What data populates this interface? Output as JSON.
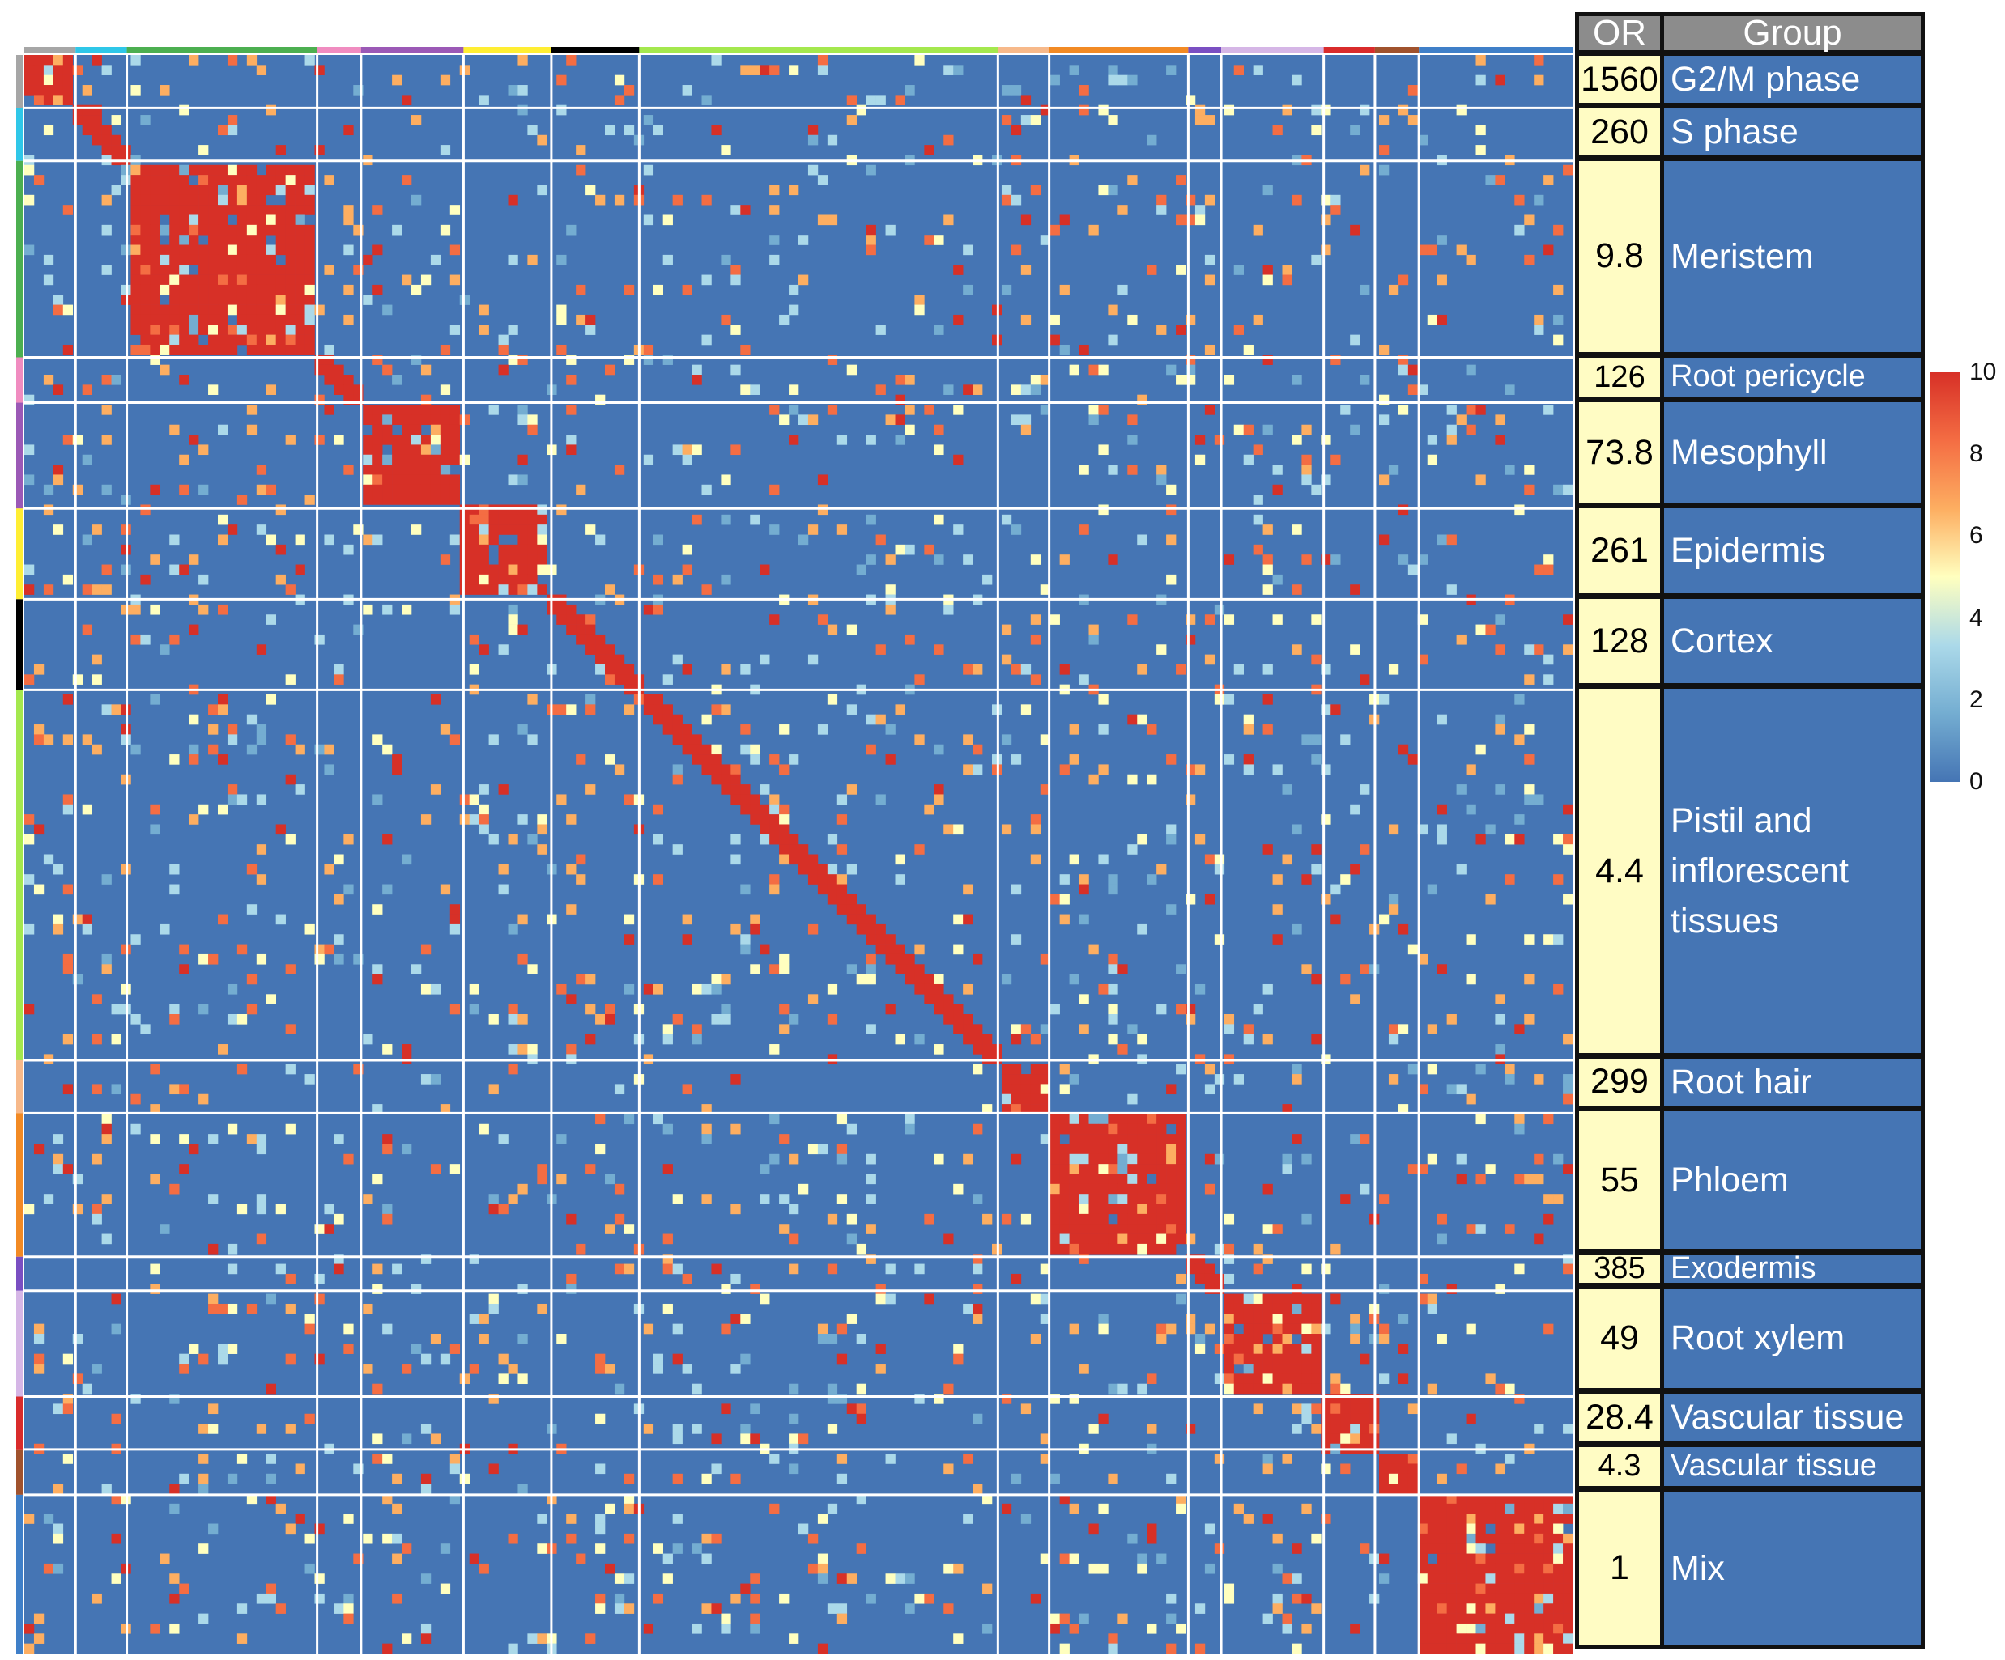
{
  "chart_data": {
    "type": "heatmap",
    "title": "",
    "xlabel": "",
    "ylabel": "",
    "table_headers": {
      "or": "OR",
      "group": "Group"
    },
    "groups": [
      {
        "name": "G2/M phase",
        "or": "1560",
        "color": "#a6a6a6"
      },
      {
        "name": "S phase",
        "or": "260",
        "color": "#2fc7e8"
      },
      {
        "name": "Meristem",
        "or": "9.8",
        "color": "#4caf50"
      },
      {
        "name": "Root pericycle",
        "or": "126",
        "color": "#f08cc0"
      },
      {
        "name": "Mesophyll",
        "or": "73.8",
        "color": "#9b59b6"
      },
      {
        "name": "Epidermis",
        "or": "261",
        "color": "#ffee33"
      },
      {
        "name": "Cortex",
        "or": "128",
        "color": "#000000"
      },
      {
        "name": "Pistil and\ninflorescent\ntissues",
        "or": "4.4",
        "color": "#a4e84e"
      },
      {
        "name": "Root hair",
        "or": "299",
        "color": "#f7b98a"
      },
      {
        "name": "Phloem",
        "or": "55",
        "color": "#f28a24"
      },
      {
        "name": "Exodermis",
        "or": "385",
        "color": "#7a4fc2"
      },
      {
        "name": "Root xylem",
        "or": "49",
        "color": "#d5b6e6"
      },
      {
        "name": "Vascular tissue",
        "or": "28.4",
        "color": "#d92b2b"
      },
      {
        "name": "Vascular tissue",
        "or": "4.3",
        "color": "#a0522d"
      },
      {
        "name": "Mix",
        "or": "1",
        "color": "#3f7fc8"
      }
    ],
    "scale": {
      "min": 0,
      "max": 10,
      "ticks": [
        "10",
        "8",
        "6",
        "4",
        "2",
        "0"
      ],
      "colors": [
        "#4575b4",
        "#74add1",
        "#abd9e9",
        "#ffffbf",
        "#fdae61",
        "#f46d43",
        "#d73027"
      ]
    },
    "diagonal_blocks_high": [
      "G2/M phase",
      "Meristem",
      "Mesophyll",
      "Epidermis",
      "Root hair",
      "Phloem",
      "Root xylem",
      "Vascular tissue",
      "Mix"
    ],
    "legend": "right",
    "grid": false
  }
}
